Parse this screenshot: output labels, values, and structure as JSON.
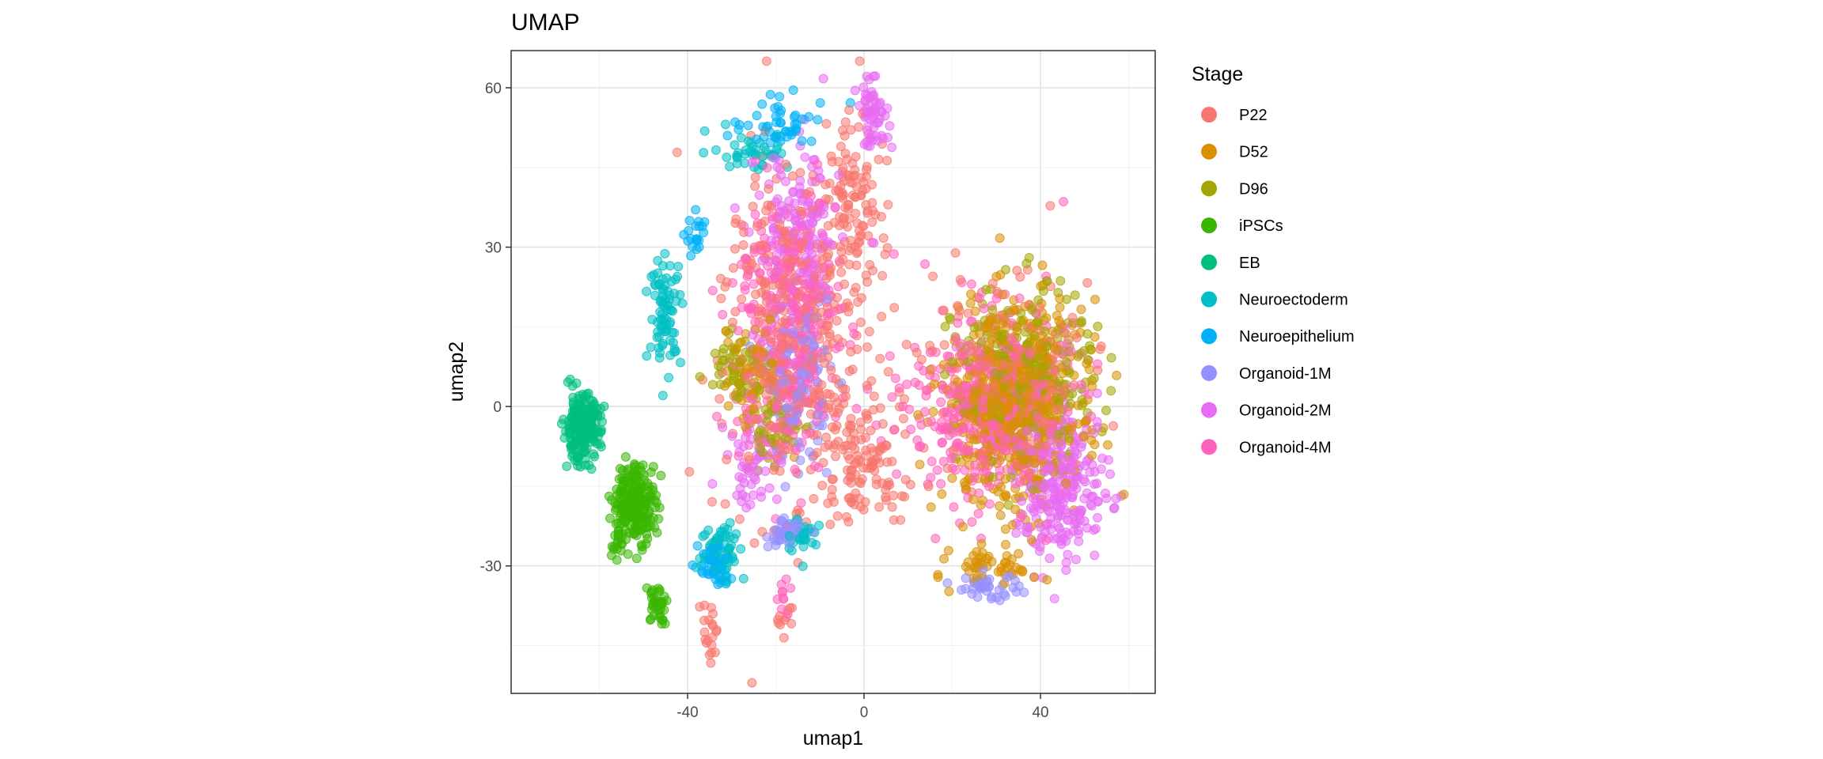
{
  "chart_data": {
    "type": "scatter",
    "title": "UMAP",
    "xlabel": "umap1",
    "ylabel": "umap2",
    "xlim": [
      -80,
      66
    ],
    "ylim": [
      -54,
      67
    ],
    "xticks": [
      -40,
      0,
      40
    ],
    "yticks": [
      -30,
      0,
      30,
      60
    ],
    "grid": true,
    "point_alpha": 0.55,
    "legend": {
      "title": "Stage",
      "position": "right",
      "entries": [
        {
          "name": "P22",
          "color": "#F8766D"
        },
        {
          "name": "D52",
          "color": "#D89000"
        },
        {
          "name": "D96",
          "color": "#A3A500"
        },
        {
          "name": "iPSCs",
          "color": "#39B600"
        },
        {
          "name": "EB",
          "color": "#00BF7D"
        },
        {
          "name": "Neuroectoderm",
          "color": "#00BFC4"
        },
        {
          "name": "Neuroepithelium",
          "color": "#00B0F6"
        },
        {
          "name": "Organoid-1M",
          "color": "#9590FF"
        },
        {
          "name": "Organoid-2M",
          "color": "#E76BF3"
        },
        {
          "name": "Organoid-4M",
          "color": "#FF62BC"
        }
      ]
    },
    "series": [
      {
        "name": "P22",
        "clusters": [
          {
            "center": [
              -15,
              15
            ],
            "spread": [
              14,
              26
            ],
            "count": 420
          },
          {
            "center": [
              -2,
              40
            ],
            "spread": [
              6,
              14
            ],
            "count": 90
          },
          {
            "center": [
              0,
              -10
            ],
            "spread": [
              10,
              10
            ],
            "count": 120
          },
          {
            "center": [
              -35,
              -43
            ],
            "spread": [
              2,
              5
            ],
            "count": 20
          },
          {
            "center": [
              -18,
              -40
            ],
            "spread": [
              1.5,
              3
            ],
            "count": 10
          },
          {
            "center": [
              33,
              5
            ],
            "spread": [
              15,
              15
            ],
            "count": 200
          }
        ]
      },
      {
        "name": "D52",
        "clusters": [
          {
            "center": [
              34,
              0
            ],
            "spread": [
              13,
              16
            ],
            "count": 520
          },
          {
            "center": [
              -25,
              5
            ],
            "spread": [
              6,
              8
            ],
            "count": 60
          },
          {
            "center": [
              30,
              -30
            ],
            "spread": [
              8,
              3
            ],
            "count": 50
          }
        ]
      },
      {
        "name": "D96",
        "clusters": [
          {
            "center": [
              36,
              5
            ],
            "spread": [
              13,
              14
            ],
            "count": 280
          },
          {
            "center": [
              -28,
              8
            ],
            "spread": [
              6,
              6
            ],
            "count": 60
          },
          {
            "center": [
              -20,
              -5
            ],
            "spread": [
              5,
              5
            ],
            "count": 40
          }
        ]
      },
      {
        "name": "iPSCs",
        "clusters": [
          {
            "center": [
              -52,
              -18
            ],
            "spread": [
              4,
              6
            ],
            "count": 230
          },
          {
            "center": [
              -47,
              -37
            ],
            "spread": [
              2,
              3
            ],
            "count": 35
          },
          {
            "center": [
              -56,
              -26
            ],
            "spread": [
              1,
              3
            ],
            "count": 15
          }
        ]
      },
      {
        "name": "EB",
        "clusters": [
          {
            "center": [
              -64,
              -4
            ],
            "spread": [
              3.5,
              5
            ],
            "count": 230
          }
        ]
      },
      {
        "name": "Neuroectoderm",
        "clusters": [
          {
            "center": [
              -45,
              18
            ],
            "spread": [
              3,
              8
            ],
            "count": 80
          },
          {
            "center": [
              -32,
              -27
            ],
            "spread": [
              4,
              5
            ],
            "count": 60
          },
          {
            "center": [
              -26,
              48
            ],
            "spread": [
              8,
              3
            ],
            "count": 40
          },
          {
            "center": [
              -14,
              -24
            ],
            "spread": [
              3,
              3
            ],
            "count": 30
          }
        ]
      },
      {
        "name": "Neuroepithelium",
        "clusters": [
          {
            "center": [
              -18,
              53
            ],
            "spread": [
              10,
              4
            ],
            "count": 50
          },
          {
            "center": [
              -34,
              -30
            ],
            "spread": [
              3,
              4
            ],
            "count": 50
          },
          {
            "center": [
              -38,
              32
            ],
            "spread": [
              2,
              4
            ],
            "count": 20
          }
        ]
      },
      {
        "name": "Organoid-1M",
        "clusters": [
          {
            "center": [
              -15,
              5
            ],
            "spread": [
              6,
              12
            ],
            "count": 120
          },
          {
            "center": [
              -18,
              -24
            ],
            "spread": [
              3,
              2
            ],
            "count": 40
          },
          {
            "center": [
              28,
              -34
            ],
            "spread": [
              6,
              2
            ],
            "count": 40
          }
        ]
      },
      {
        "name": "Organoid-2M",
        "clusters": [
          {
            "center": [
              -15,
              30
            ],
            "spread": [
              8,
              16
            ],
            "count": 160
          },
          {
            "center": [
              2,
              55
            ],
            "spread": [
              3,
              5
            ],
            "count": 60
          },
          {
            "center": [
              45,
              -15
            ],
            "spread": [
              9,
              12
            ],
            "count": 260
          },
          {
            "center": [
              -25,
              -10
            ],
            "spread": [
              5,
              8
            ],
            "count": 60
          }
        ]
      },
      {
        "name": "Organoid-4M",
        "clusters": [
          {
            "center": [
              -18,
              15
            ],
            "spread": [
              10,
              22
            ],
            "count": 300
          },
          {
            "center": [
              28,
              0
            ],
            "spread": [
              15,
              15
            ],
            "count": 400
          },
          {
            "center": [
              -18,
              -36
            ],
            "spread": [
              1.5,
              3
            ],
            "count": 10
          }
        ]
      }
    ]
  }
}
